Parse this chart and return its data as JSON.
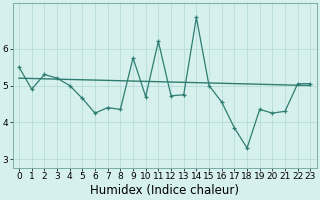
{
  "x": [
    0,
    1,
    2,
    3,
    4,
    5,
    6,
    7,
    8,
    9,
    10,
    11,
    12,
    13,
    14,
    15,
    16,
    17,
    18,
    19,
    20,
    21,
    22,
    23
  ],
  "y_line": [
    5.5,
    4.9,
    5.3,
    5.2,
    5.0,
    4.65,
    4.25,
    4.4,
    4.35,
    5.75,
    4.7,
    6.2,
    4.72,
    4.75,
    6.85,
    5.0,
    4.55,
    3.85,
    3.3,
    4.35,
    4.25,
    4.3,
    5.05,
    5.05
  ],
  "y_trend_x": [
    0,
    23
  ],
  "y_trend_y": [
    5.2,
    5.0
  ],
  "xlabel": "Humidex (Indice chaleur)",
  "yticks": [
    3,
    4,
    5,
    6
  ],
  "ylim": [
    2.75,
    7.25
  ],
  "xlim": [
    -0.5,
    23.5
  ],
  "line_color": "#2e7d72",
  "bg_color": "#d6f1ed",
  "grid_color": "#b0d8d4",
  "tick_label_fontsize": 6.5,
  "xlabel_fontsize": 8.5
}
